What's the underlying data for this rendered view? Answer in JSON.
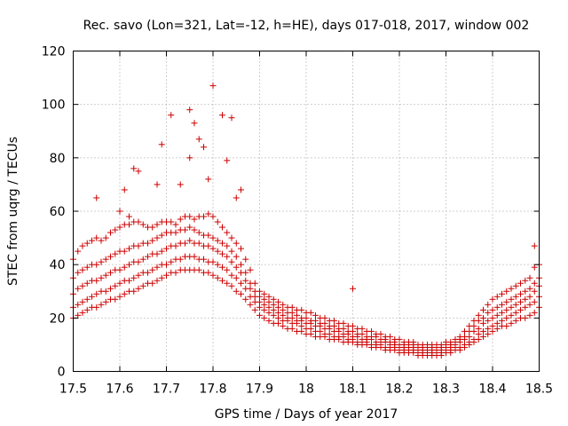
{
  "chart_data": {
    "type": "scatter",
    "title": "Rec. savo (Lon=321, Lat=-12, h=HE), days 017-018, 2017, window 002",
    "xlabel": "GPS time / Days of year 2017",
    "ylabel": "STEC from uqrg / TECUs",
    "xlim": [
      17.5,
      18.5
    ],
    "ylim": [
      0,
      120
    ],
    "xticks": [
      "17.5",
      "17.6",
      "17.7",
      "17.8",
      "17.9",
      "18",
      "18.1",
      "18.2",
      "18.3",
      "18.4",
      "18.5"
    ],
    "yticks": [
      "0",
      "20",
      "40",
      "60",
      "80",
      "100",
      "120"
    ],
    "grid": true,
    "marker": "+",
    "color": "#cc0000",
    "series": [
      {
        "x": [
          17.5,
          17.51,
          17.52,
          17.53,
          17.54,
          17.55,
          17.56,
          17.57,
          17.58,
          17.59,
          17.6,
          17.61,
          17.62,
          17.63,
          17.64,
          17.65,
          17.66,
          17.67,
          17.68,
          17.69,
          17.7,
          17.71,
          17.72,
          17.73,
          17.74,
          17.75,
          17.76,
          17.77,
          17.78,
          17.79,
          17.8,
          17.81,
          17.82,
          17.83,
          17.84,
          17.85,
          17.86,
          17.87,
          17.88,
          17.89,
          17.9,
          17.91,
          17.92,
          17.93,
          17.94,
          17.95,
          17.96,
          17.97,
          17.98,
          17.99,
          18.0,
          18.01,
          18.02,
          18.03,
          18.04,
          18.05,
          18.06,
          18.07,
          18.08,
          18.09,
          18.1,
          18.11,
          18.12,
          18.13,
          18.14,
          18.15,
          18.16,
          18.17,
          18.18,
          18.19,
          18.2,
          18.21,
          18.22,
          18.23,
          18.24,
          18.25,
          18.26,
          18.27,
          18.28,
          18.29,
          18.3,
          18.31,
          18.32,
          18.33,
          18.34,
          18.35,
          18.36,
          18.37,
          18.38,
          18.39,
          18.4,
          18.41,
          18.42,
          18.43,
          18.44,
          18.45,
          18.46,
          18.47,
          18.48,
          18.49,
          18.5
        ],
        "y": [
          42,
          45,
          47,
          48,
          49,
          50,
          49,
          50,
          52,
          53,
          54,
          55,
          55,
          56,
          56,
          55,
          54,
          54,
          55,
          56,
          56,
          56,
          55,
          57,
          58,
          58,
          57,
          58,
          58,
          59,
          58,
          56,
          54,
          52,
          50,
          48,
          46,
          42,
          38,
          33,
          30,
          29,
          28,
          27,
          26,
          25,
          24,
          24,
          23,
          23,
          22,
          22,
          21,
          20,
          20,
          19,
          19,
          18,
          18,
          17,
          17,
          16,
          16,
          15,
          15,
          14,
          14,
          13,
          13,
          12,
          12,
          11,
          11,
          11,
          10,
          10,
          10,
          10,
          10,
          10,
          11,
          11,
          12,
          13,
          15,
          17,
          19,
          21,
          23,
          25,
          27,
          28,
          29,
          30,
          31,
          32,
          33,
          34,
          35,
          39,
          40
        ]
      },
      {
        "x": [
          17.5,
          17.51,
          17.52,
          17.53,
          17.54,
          17.55,
          17.56,
          17.57,
          17.58,
          17.59,
          17.6,
          17.61,
          17.62,
          17.63,
          17.64,
          17.65,
          17.66,
          17.67,
          17.68,
          17.69,
          17.7,
          17.71,
          17.72,
          17.73,
          17.74,
          17.75,
          17.76,
          17.77,
          17.78,
          17.79,
          17.8,
          17.81,
          17.82,
          17.83,
          17.84,
          17.85,
          17.86,
          17.87,
          17.88,
          17.89,
          17.9,
          17.91,
          17.92,
          17.93,
          17.94,
          17.95,
          17.96,
          17.97,
          17.98,
          17.99,
          18.0,
          18.01,
          18.02,
          18.03,
          18.04,
          18.05,
          18.06,
          18.07,
          18.08,
          18.09,
          18.1,
          18.11,
          18.12,
          18.13,
          18.14,
          18.15,
          18.16,
          18.17,
          18.18,
          18.19,
          18.2,
          18.21,
          18.22,
          18.23,
          18.24,
          18.25,
          18.26,
          18.27,
          18.28,
          18.29,
          18.3,
          18.31,
          18.32,
          18.33,
          18.34,
          18.35,
          18.36,
          18.37,
          18.38,
          18.39,
          18.4,
          18.41,
          18.42,
          18.43,
          18.44,
          18.45,
          18.46,
          18.47,
          18.48,
          18.49,
          18.5
        ],
        "y": [
          35,
          37,
          38,
          39,
          40,
          40,
          41,
          42,
          43,
          44,
          45,
          45,
          46,
          47,
          47,
          48,
          48,
          49,
          50,
          51,
          52,
          52,
          52,
          53,
          53,
          54,
          53,
          52,
          51,
          51,
          50,
          49,
          48,
          47,
          45,
          43,
          40,
          37,
          33,
          30,
          28,
          27,
          26,
          25,
          24,
          23,
          22,
          22,
          21,
          20,
          20,
          19,
          19,
          18,
          18,
          17,
          17,
          16,
          16,
          15,
          15,
          14,
          14,
          13,
          13,
          13,
          12,
          12,
          11,
          11,
          10,
          10,
          10,
          10,
          9,
          9,
          9,
          9,
          9,
          9,
          10,
          10,
          11,
          12,
          13,
          15,
          17,
          19,
          20,
          22,
          23,
          24,
          25,
          26,
          27,
          28,
          29,
          30,
          31,
          33,
          35
        ]
      },
      {
        "x": [
          17.5,
          17.51,
          17.52,
          17.53,
          17.54,
          17.55,
          17.56,
          17.57,
          17.58,
          17.59,
          17.6,
          17.61,
          17.62,
          17.63,
          17.64,
          17.65,
          17.66,
          17.67,
          17.68,
          17.69,
          17.7,
          17.71,
          17.72,
          17.73,
          17.74,
          17.75,
          17.76,
          17.77,
          17.78,
          17.79,
          17.8,
          17.81,
          17.82,
          17.83,
          17.84,
          17.85,
          17.86,
          17.87,
          17.88,
          17.89,
          17.9,
          17.91,
          17.92,
          17.93,
          17.94,
          17.95,
          17.96,
          17.97,
          17.98,
          17.99,
          18.0,
          18.01,
          18.02,
          18.03,
          18.04,
          18.05,
          18.06,
          18.07,
          18.08,
          18.09,
          18.1,
          18.11,
          18.12,
          18.13,
          18.14,
          18.15,
          18.16,
          18.17,
          18.18,
          18.19,
          18.2,
          18.21,
          18.22,
          18.23,
          18.24,
          18.25,
          18.26,
          18.27,
          18.28,
          18.29,
          18.3,
          18.31,
          18.32,
          18.33,
          18.34,
          18.35,
          18.36,
          18.37,
          18.38,
          18.39,
          18.4,
          18.41,
          18.42,
          18.43,
          18.44,
          18.45,
          18.46,
          18.47,
          18.48,
          18.49,
          18.5
        ],
        "y": [
          29,
          31,
          32,
          33,
          34,
          34,
          35,
          36,
          37,
          38,
          38,
          39,
          40,
          41,
          41,
          42,
          43,
          44,
          44,
          45,
          46,
          47,
          47,
          48,
          48,
          49,
          48,
          48,
          47,
          47,
          46,
          45,
          44,
          43,
          41,
          39,
          37,
          34,
          31,
          28,
          26,
          25,
          24,
          23,
          22,
          21,
          20,
          20,
          19,
          19,
          18,
          18,
          17,
          17,
          16,
          16,
          15,
          15,
          14,
          14,
          13,
          13,
          12,
          12,
          12,
          11,
          11,
          11,
          10,
          10,
          9,
          9,
          9,
          9,
          8,
          8,
          8,
          8,
          8,
          8,
          9,
          9,
          10,
          11,
          12,
          13,
          15,
          16,
          18,
          19,
          20,
          21,
          22,
          23,
          24,
          25,
          26,
          27,
          28,
          30,
          32
        ]
      },
      {
        "x": [
          17.5,
          17.51,
          17.52,
          17.53,
          17.54,
          17.55,
          17.56,
          17.57,
          17.58,
          17.59,
          17.6,
          17.61,
          17.62,
          17.63,
          17.64,
          17.65,
          17.66,
          17.67,
          17.68,
          17.69,
          17.7,
          17.71,
          17.72,
          17.73,
          17.74,
          17.75,
          17.76,
          17.77,
          17.78,
          17.79,
          17.8,
          17.81,
          17.82,
          17.83,
          17.84,
          17.85,
          17.86,
          17.87,
          17.88,
          17.89,
          17.9,
          17.91,
          17.92,
          17.93,
          17.94,
          17.95,
          17.96,
          17.97,
          17.98,
          17.99,
          18.0,
          18.01,
          18.02,
          18.03,
          18.04,
          18.05,
          18.06,
          18.07,
          18.08,
          18.09,
          18.1,
          18.11,
          18.12,
          18.13,
          18.14,
          18.15,
          18.16,
          18.17,
          18.18,
          18.19,
          18.2,
          18.21,
          18.22,
          18.23,
          18.24,
          18.25,
          18.26,
          18.27,
          18.28,
          18.29,
          18.3,
          18.31,
          18.32,
          18.33,
          18.34,
          18.35,
          18.36,
          18.37,
          18.38,
          18.39,
          18.4,
          18.41,
          18.42,
          18.43,
          18.44,
          18.45,
          18.46,
          18.47,
          18.48,
          18.49,
          18.5
        ],
        "y": [
          24,
          25,
          26,
          27,
          28,
          29,
          30,
          30,
          31,
          32,
          33,
          34,
          34,
          35,
          36,
          37,
          37,
          38,
          39,
          40,
          40,
          41,
          42,
          42,
          43,
          43,
          43,
          42,
          42,
          41,
          41,
          40,
          39,
          38,
          36,
          35,
          33,
          31,
          28,
          26,
          24,
          23,
          22,
          21,
          20,
          19,
          19,
          18,
          18,
          17,
          16,
          16,
          15,
          15,
          14,
          14,
          13,
          13,
          13,
          12,
          12,
          11,
          11,
          11,
          10,
          10,
          10,
          9,
          9,
          9,
          8,
          8,
          8,
          8,
          7,
          7,
          7,
          7,
          7,
          7,
          8,
          8,
          9,
          9,
          10,
          11,
          12,
          14,
          15,
          16,
          17,
          18,
          19,
          20,
          21,
          22,
          23,
          24,
          25,
          26,
          28
        ]
      },
      {
        "x": [
          17.5,
          17.51,
          17.52,
          17.53,
          17.54,
          17.55,
          17.56,
          17.57,
          17.58,
          17.59,
          17.6,
          17.61,
          17.62,
          17.63,
          17.64,
          17.65,
          17.66,
          17.67,
          17.68,
          17.69,
          17.7,
          17.71,
          17.72,
          17.73,
          17.74,
          17.75,
          17.76,
          17.77,
          17.78,
          17.79,
          17.8,
          17.81,
          17.82,
          17.83,
          17.84,
          17.85,
          17.86,
          17.87,
          17.88,
          17.89,
          17.9,
          17.91,
          17.92,
          17.93,
          17.94,
          17.95,
          17.96,
          17.97,
          17.98,
          17.99,
          18.0,
          18.01,
          18.02,
          18.03,
          18.04,
          18.05,
          18.06,
          18.07,
          18.08,
          18.09,
          18.1,
          18.11,
          18.12,
          18.13,
          18.14,
          18.15,
          18.16,
          18.17,
          18.18,
          18.19,
          18.2,
          18.21,
          18.22,
          18.23,
          18.24,
          18.25,
          18.26,
          18.27,
          18.28,
          18.29,
          18.3,
          18.31,
          18.32,
          18.33,
          18.34,
          18.35,
          18.36,
          18.37,
          18.38,
          18.39,
          18.4,
          18.41,
          18.42,
          18.43,
          18.44,
          18.45,
          18.46,
          18.47,
          18.48,
          18.49,
          18.5
        ],
        "y": [
          20,
          21,
          22,
          23,
          24,
          24,
          25,
          26,
          27,
          27,
          28,
          29,
          30,
          30,
          31,
          32,
          33,
          33,
          34,
          35,
          36,
          37,
          37,
          38,
          38,
          38,
          38,
          38,
          37,
          37,
          36,
          35,
          34,
          33,
          32,
          30,
          29,
          27,
          25,
          23,
          21,
          20,
          19,
          18,
          18,
          17,
          16,
          16,
          15,
          15,
          14,
          14,
          13,
          13,
          13,
          12,
          12,
          12,
          11,
          11,
          11,
          10,
          10,
          10,
          9,
          9,
          9,
          8,
          8,
          8,
          7,
          7,
          7,
          7,
          6,
          6,
          6,
          6,
          6,
          6,
          7,
          7,
          8,
          8,
          9,
          10,
          11,
          12,
          13,
          14,
          15,
          16,
          17,
          17,
          18,
          19,
          20,
          20,
          21,
          22,
          24
        ]
      },
      {
        "x": [
          17.55,
          17.6,
          17.61,
          17.62,
          17.63,
          17.64,
          17.68,
          17.69,
          17.71,
          17.73,
          17.75,
          17.75,
          17.76,
          17.77,
          17.78,
          17.79,
          17.8,
          17.82,
          17.83,
          17.84,
          17.85,
          17.86,
          18.1,
          18.49
        ],
        "y": [
          65,
          60,
          68,
          58,
          76,
          75,
          70,
          85,
          96,
          70,
          98,
          80,
          93,
          87,
          84,
          72,
          107,
          96,
          79,
          95,
          65,
          68,
          31,
          47
        ]
      }
    ]
  }
}
